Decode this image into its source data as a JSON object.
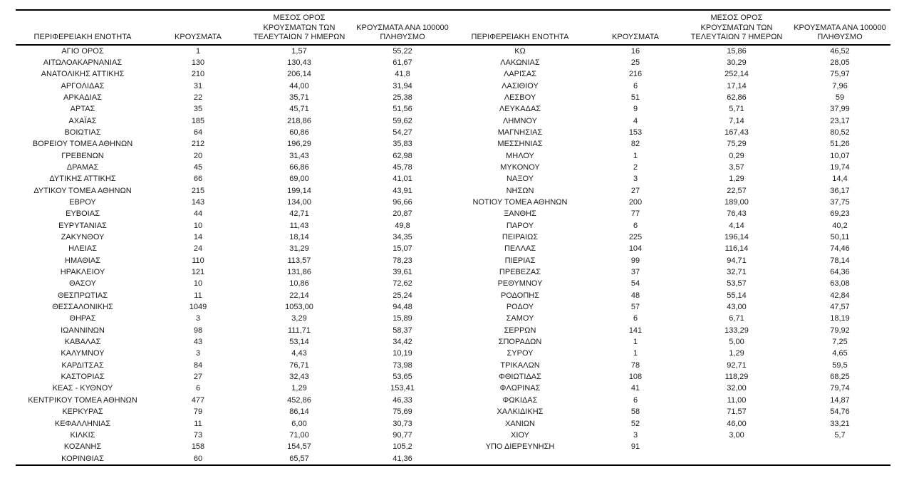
{
  "table": {
    "headers": [
      "ΠΕΡΙΦΕΡΕΙΑΚΗ ΕΝΟΤΗΤΑ",
      "ΚΡΟΥΣΜΑΤΑ",
      "ΜΕΣΟΣ ΟΡΟΣ\nΚΡΟΥΣΜΑΤΩΝ ΤΩΝ\nΤΕΛΕΥΤΑΙΩΝ 7 ΗΜΕΡΩΝ",
      "ΚΡΟΥΣΜΑΤΑ ΑΝΑ 100000\nΠΛΗΘΥΣΜΟ",
      "ΠΕΡΙΦΕΡΕΙΑΚΗ ΕΝΟΤΗΤΑ",
      "ΚΡΟΥΣΜΑΤΑ",
      "ΜΕΣΟΣ ΟΡΟΣ\nΚΡΟΥΣΜΑΤΩΝ ΤΩΝ\nΤΕΛΕΥΤΑΙΩΝ 7 ΗΜΕΡΩΝ",
      "ΚΡΟΥΣΜΑΤΑ ΑΝΑ 100000\nΠΛΗΘΥΣΜΟ"
    ],
    "rows": [
      [
        "ΑΓΙΟ ΟΡΟΣ",
        "1",
        "1,57",
        "55,22",
        "ΚΩ",
        "16",
        "15,86",
        "46,52"
      ],
      [
        "ΑΙΤΩΛΟΑΚΑΡΝΑΝΙΑΣ",
        "130",
        "130,43",
        "61,67",
        "ΛΑΚΩΝΙΑΣ",
        "25",
        "30,29",
        "28,05"
      ],
      [
        "ΑΝΑΤΟΛΙΚΗΣ ΑΤΤΙΚΗΣ",
        "210",
        "206,14",
        "41,8",
        "ΛΑΡΙΣΑΣ",
        "216",
        "252,14",
        "75,97"
      ],
      [
        "ΑΡΓΟΛΙΔΑΣ",
        "31",
        "44,00",
        "31,94",
        "ΛΑΣΙΘΙΟΥ",
        "6",
        "17,14",
        "7,96"
      ],
      [
        "ΑΡΚΑΔΙΑΣ",
        "22",
        "35,71",
        "25,38",
        "ΛΕΣΒΟΥ",
        "51",
        "62,86",
        "59"
      ],
      [
        "ΑΡΤΑΣ",
        "35",
        "45,71",
        "51,56",
        "ΛΕΥΚΑΔΑΣ",
        "9",
        "5,71",
        "37,99"
      ],
      [
        "ΑΧΑΪΑΣ",
        "185",
        "218,86",
        "59,62",
        "ΛΗΜΝΟΥ",
        "4",
        "7,14",
        "23,17"
      ],
      [
        "ΒΟΙΩΤΙΑΣ",
        "64",
        "60,86",
        "54,27",
        "ΜΑΓΝΗΣΙΑΣ",
        "153",
        "167,43",
        "80,52"
      ],
      [
        "ΒΟΡΕΙΟΥ ΤΟΜΕΑ ΑΘΗΝΩΝ",
        "212",
        "196,29",
        "35,83",
        "ΜΕΣΣΗΝΙΑΣ",
        "82",
        "75,29",
        "51,26"
      ],
      [
        "ΓΡΕΒΕΝΩΝ",
        "20",
        "31,43",
        "62,98",
        "ΜΗΛΟΥ",
        "1",
        "0,29",
        "10,07"
      ],
      [
        "ΔΡΑΜΑΣ",
        "45",
        "66,86",
        "45,78",
        "ΜΥΚΟΝΟΥ",
        "2",
        "3,57",
        "19,74"
      ],
      [
        "ΔΥΤΙΚΗΣ ΑΤΤΙΚΗΣ",
        "66",
        "69,00",
        "41,01",
        "ΝΑΞΟΥ",
        "3",
        "1,29",
        "14,4"
      ],
      [
        "ΔΥΤΙΚΟΥ ΤΟΜΕΑ ΑΘΗΝΩΝ",
        "215",
        "199,14",
        "43,91",
        "ΝΗΣΩΝ",
        "27",
        "22,57",
        "36,17"
      ],
      [
        "ΕΒΡΟΥ",
        "143",
        "134,00",
        "96,66",
        "ΝΟΤΙΟΥ ΤΟΜΕΑ ΑΘΗΝΩΝ",
        "200",
        "189,00",
        "37,75"
      ],
      [
        "ΕΥΒΟΙΑΣ",
        "44",
        "42,71",
        "20,87",
        "ΞΑΝΘΗΣ",
        "77",
        "76,43",
        "69,23"
      ],
      [
        "ΕΥΡΥΤΑΝΙΑΣ",
        "10",
        "11,43",
        "49,8",
        "ΠΑΡΟΥ",
        "6",
        "4,14",
        "40,2"
      ],
      [
        "ΖΑΚΥΝΘΟΥ",
        "14",
        "18,14",
        "34,35",
        "ΠΕΙΡΑΙΩΣ",
        "225",
        "196,14",
        "50,11"
      ],
      [
        "ΗΛΕΙΑΣ",
        "24",
        "31,29",
        "15,07",
        "ΠΕΛΛΑΣ",
        "104",
        "116,14",
        "74,46"
      ],
      [
        "ΗΜΑΘΙΑΣ",
        "110",
        "113,57",
        "78,23",
        "ΠΙΕΡΙΑΣ",
        "99",
        "94,71",
        "78,14"
      ],
      [
        "ΗΡΑΚΛΕΙΟΥ",
        "121",
        "131,86",
        "39,61",
        "ΠΡΕΒΕΖΑΣ",
        "37",
        "32,71",
        "64,36"
      ],
      [
        "ΘΑΣΟΥ",
        "10",
        "10,86",
        "72,62",
        "ΡΕΘΥΜΝΟΥ",
        "54",
        "53,57",
        "63,08"
      ],
      [
        "ΘΕΣΠΡΩΤΙΑΣ",
        "11",
        "22,14",
        "25,24",
        "ΡΟΔΟΠΗΣ",
        "48",
        "55,14",
        "42,84"
      ],
      [
        "ΘΕΣΣΑΛΟΝΙΚΗΣ",
        "1049",
        "1053,00",
        "94,48",
        "ΡΟΔΟΥ",
        "57",
        "43,00",
        "47,57"
      ],
      [
        "ΘΗΡΑΣ",
        "3",
        "3,29",
        "15,89",
        "ΣΑΜΟΥ",
        "6",
        "6,71",
        "18,19"
      ],
      [
        "ΙΩΑΝΝΙΝΩΝ",
        "98",
        "111,71",
        "58,37",
        "ΣΕΡΡΩΝ",
        "141",
        "133,29",
        "79,92"
      ],
      [
        "ΚΑΒΑΛΑΣ",
        "43",
        "53,14",
        "34,42",
        "ΣΠΟΡΑΔΩΝ",
        "1",
        "5,00",
        "7,25"
      ],
      [
        "ΚΑΛΥΜΝΟΥ",
        "3",
        "4,43",
        "10,19",
        "ΣΥΡΟΥ",
        "1",
        "1,29",
        "4,65"
      ],
      [
        "ΚΑΡΔΙΤΣΑΣ",
        "84",
        "76,71",
        "73,98",
        "ΤΡΙΚΑΛΩΝ",
        "78",
        "92,71",
        "59,5"
      ],
      [
        "ΚΑΣΤΟΡΙΑΣ",
        "27",
        "32,43",
        "53,65",
        "ΦΘΙΩΤΙΔΑΣ",
        "108",
        "118,29",
        "68,25"
      ],
      [
        "ΚΕΑΣ - ΚΥΘΝΟΥ",
        "6",
        "1,29",
        "153,41",
        "ΦΛΩΡΙΝΑΣ",
        "41",
        "32,00",
        "79,74"
      ],
      [
        "ΚΕΝΤΡΙΚΟΥ ΤΟΜΕΑ ΑΘΗΝΩΝ",
        "477",
        "452,86",
        "46,33",
        "ΦΩΚΙΔΑΣ",
        "6",
        "11,00",
        "14,87"
      ],
      [
        "ΚΕΡΚΥΡΑΣ",
        "79",
        "86,14",
        "75,69",
        "ΧΑΛΚΙΔΙΚΗΣ",
        "58",
        "71,57",
        "54,76"
      ],
      [
        "ΚΕΦΑΛΛΗΝΙΑΣ",
        "11",
        "6,00",
        "30,73",
        "ΧΑΝΙΩΝ",
        "52",
        "46,00",
        "33,21"
      ],
      [
        "ΚΙΛΚΙΣ",
        "73",
        "71,00",
        "90,77",
        "ΧΙΟΥ",
        "3",
        "3,00",
        "5,7"
      ],
      [
        "ΚΟΖΑΝΗΣ",
        "158",
        "154,57",
        "105,2",
        "ΥΠΟ ΔΙΕΡΕΥΝΗΣΗ",
        "91",
        "",
        ""
      ],
      [
        "ΚΟΡΙΝΘΙΑΣ",
        "60",
        "65,57",
        "41,36",
        "",
        "",
        "",
        ""
      ]
    ]
  }
}
